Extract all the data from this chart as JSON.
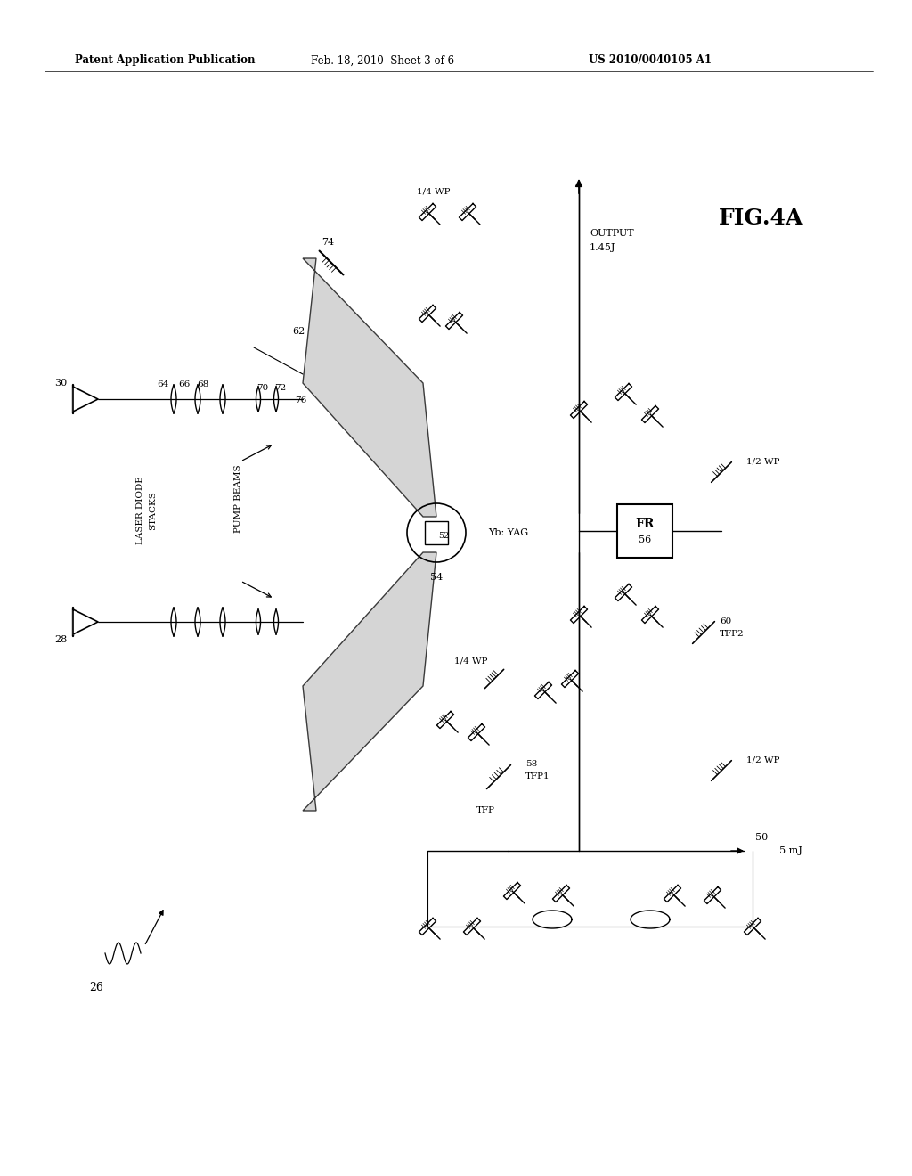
{
  "bg_color": "#ffffff",
  "header_left": "Patent Application Publication",
  "header_center": "Feb. 18, 2010  Sheet 3 of 6",
  "header_right": "US 2010/0040105 A1",
  "fig_label": "FIG.4A",
  "lc": "#000000",
  "shading_color": "#c8c8c8"
}
